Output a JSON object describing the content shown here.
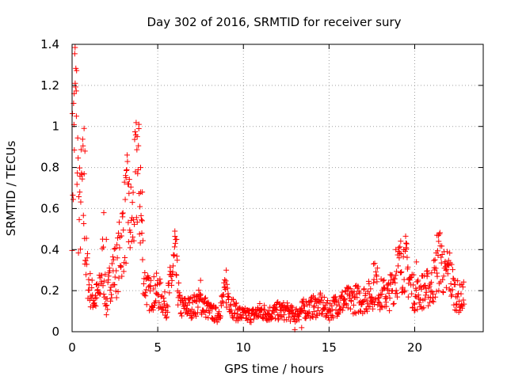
{
  "chart_data": {
    "type": "scatter",
    "title": "Day 302 of 2016, SRMTID for receiver sury",
    "xlabel": "GPS time / hours",
    "ylabel": "SRMTID / TECUs",
    "xlim": [
      0,
      24
    ],
    "ylim": [
      0,
      1.4
    ],
    "xticks": [
      0,
      5,
      10,
      15,
      20
    ],
    "xtick_labels": [
      "0",
      "5",
      "10",
      "15",
      "20"
    ],
    "yticks": [
      0,
      0.2,
      0.4,
      0.6,
      0.8,
      1,
      1.2,
      1.4
    ],
    "ytick_labels": [
      "0",
      "0.2",
      "0.4",
      "0.6",
      "0.8",
      "1",
      "1.2",
      "1.4"
    ],
    "grid": true,
    "marker": "+",
    "color": "#ff0000",
    "series": [
      {
        "name": "SRMTID",
        "trend": [
          [
            0.0,
            0.72
          ],
          [
            0.1,
            0.95
          ],
          [
            0.15,
            1.1
          ],
          [
            0.2,
            1.15
          ],
          [
            0.3,
            0.9
          ],
          [
            0.4,
            0.55
          ],
          [
            0.5,
            0.62
          ],
          [
            0.6,
            0.7
          ],
          [
            0.7,
            0.6
          ],
          [
            0.8,
            0.35
          ],
          [
            1.0,
            0.22
          ],
          [
            1.3,
            0.15
          ],
          [
            1.6,
            0.2
          ],
          [
            1.8,
            0.35
          ],
          [
            2.0,
            0.12
          ],
          [
            2.3,
            0.3
          ],
          [
            2.6,
            0.3
          ],
          [
            2.9,
            0.45
          ],
          [
            3.2,
            0.6
          ],
          [
            3.5,
            0.5
          ],
          [
            3.8,
            0.8
          ],
          [
            4.0,
            0.6
          ],
          [
            4.2,
            0.25
          ],
          [
            4.5,
            0.18
          ],
          [
            5.0,
            0.2
          ],
          [
            5.5,
            0.12
          ],
          [
            6.0,
            0.35
          ],
          [
            6.3,
            0.12
          ],
          [
            7.0,
            0.12
          ],
          [
            7.5,
            0.15
          ],
          [
            8.0,
            0.1
          ],
          [
            8.5,
            0.08
          ],
          [
            9.0,
            0.2
          ],
          [
            9.5,
            0.1
          ],
          [
            10.0,
            0.08
          ],
          [
            10.5,
            0.08
          ],
          [
            11.0,
            0.1
          ],
          [
            11.5,
            0.09
          ],
          [
            12.0,
            0.1
          ],
          [
            12.5,
            0.1
          ],
          [
            13.0,
            0.08
          ],
          [
            13.5,
            0.11
          ],
          [
            14.0,
            0.12
          ],
          [
            14.5,
            0.13
          ],
          [
            15.0,
            0.1
          ],
          [
            15.5,
            0.14
          ],
          [
            16.0,
            0.15
          ],
          [
            16.5,
            0.16
          ],
          [
            17.0,
            0.16
          ],
          [
            17.5,
            0.18
          ],
          [
            17.7,
            0.25
          ],
          [
            18.0,
            0.18
          ],
          [
            18.5,
            0.18
          ],
          [
            19.0,
            0.3
          ],
          [
            19.4,
            0.35
          ],
          [
            19.8,
            0.22
          ],
          [
            20.0,
            0.18
          ],
          [
            20.5,
            0.2
          ],
          [
            21.0,
            0.22
          ],
          [
            21.3,
            0.3
          ],
          [
            21.5,
            0.38
          ],
          [
            21.8,
            0.24
          ],
          [
            22.0,
            0.3
          ],
          [
            22.3,
            0.2
          ],
          [
            22.6,
            0.16
          ],
          [
            22.9,
            0.17
          ]
        ],
        "peaks": [
          [
            0.18,
            1.21
          ],
          [
            0.12,
            1.16
          ],
          [
            0.25,
            1.05
          ],
          [
            0.45,
            0.68
          ],
          [
            0.7,
            0.99
          ],
          [
            0.75,
            0.88
          ],
          [
            1.85,
            0.58
          ],
          [
            2.0,
            0.45
          ],
          [
            3.15,
            0.75
          ],
          [
            3.3,
            0.72
          ],
          [
            3.8,
            0.95
          ],
          [
            3.9,
            1.01
          ],
          [
            4.0,
            0.8
          ],
          [
            4.1,
            0.68
          ],
          [
            6.0,
            0.49
          ],
          [
            6.1,
            0.45
          ],
          [
            7.5,
            0.25
          ],
          [
            9.0,
            0.3
          ],
          [
            17.6,
            0.33
          ],
          [
            18.9,
            0.4
          ],
          [
            19.2,
            0.38
          ],
          [
            19.5,
            0.41
          ],
          [
            20.1,
            0.34
          ],
          [
            21.3,
            0.47
          ],
          [
            21.4,
            0.44
          ],
          [
            21.9,
            0.39
          ],
          [
            13.0,
            0.01
          ],
          [
            13.4,
            0.02
          ]
        ]
      }
    ]
  }
}
